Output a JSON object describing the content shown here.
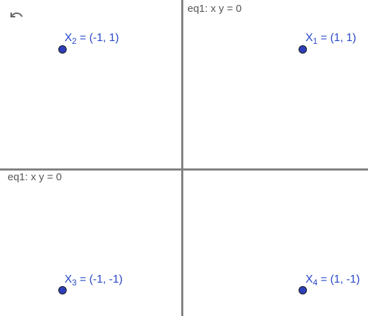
{
  "toolbar": {
    "undo_icon": "undo-icon"
  },
  "graphics": {
    "colors": {
      "axis": "#808080",
      "point_fill": "#2c3fb8",
      "point_label": "#2546c8",
      "equation_label": "#555555"
    },
    "equations": [
      {
        "text": "eq1: x y = 0"
      },
      {
        "text": "eq1: x y = 0"
      }
    ],
    "points": [
      {
        "name": "X",
        "sub": "1",
        "coords": " = (1, 1)"
      },
      {
        "name": "X",
        "sub": "2",
        "coords": " = (-1, 1)"
      },
      {
        "name": "X",
        "sub": "3",
        "coords": " = (-1, -1)"
      },
      {
        "name": "X",
        "sub": "4",
        "coords": " = (1, -1)"
      }
    ]
  }
}
